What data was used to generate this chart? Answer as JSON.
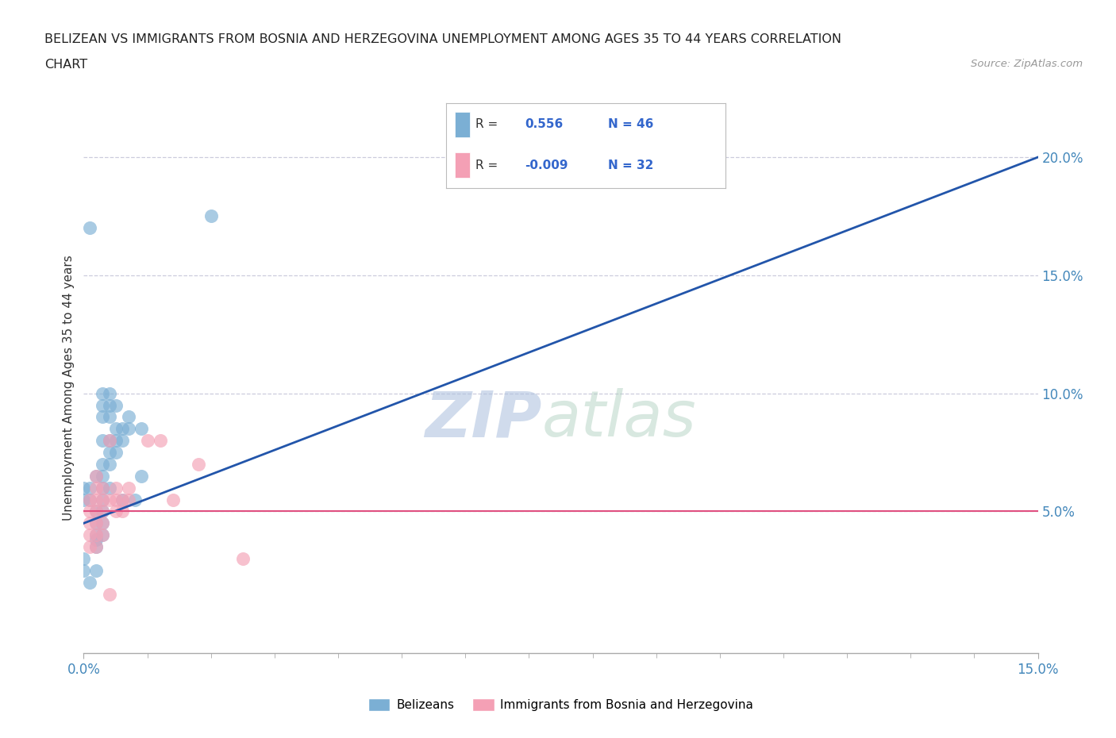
{
  "title_line1": "BELIZEAN VS IMMIGRANTS FROM BOSNIA AND HERZEGOVINA UNEMPLOYMENT AMONG AGES 35 TO 44 YEARS CORRELATION",
  "title_line2": "CHART",
  "source_text": "Source: ZipAtlas.com",
  "ylabel": "Unemployment Among Ages 35 to 44 years",
  "xlim": [
    0.0,
    0.15
  ],
  "ylim": [
    -0.01,
    0.215
  ],
  "xticks": [
    0.0,
    0.15
  ],
  "yticks": [
    0.05,
    0.1,
    0.15,
    0.2
  ],
  "xticklabels": [
    "0.0%",
    "15.0%"
  ],
  "yticklabels": [
    "5.0%",
    "10.0%",
    "15.0%",
    "20.0%"
  ],
  "watermark_zip": "ZIP",
  "watermark_atlas": "atlas",
  "legend_labels": [
    "Belizeans",
    "Immigrants from Bosnia and Herzegovina"
  ],
  "R_blue": 0.556,
  "N_blue": 46,
  "R_pink": -0.009,
  "N_pink": 32,
  "blue_color": "#7BAFD4",
  "pink_color": "#F4A0B5",
  "blue_line_color": "#2255AA",
  "pink_line_color": "#E05080",
  "blue_scatter": [
    [
      0.0,
      0.055
    ],
    [
      0.0,
      0.06
    ],
    [
      0.001,
      0.055
    ],
    [
      0.001,
      0.06
    ],
    [
      0.002,
      0.065
    ],
    [
      0.002,
      0.05
    ],
    [
      0.002,
      0.045
    ],
    [
      0.002,
      0.04
    ],
    [
      0.002,
      0.035
    ],
    [
      0.002,
      0.038
    ],
    [
      0.003,
      0.055
    ],
    [
      0.003,
      0.06
    ],
    [
      0.003,
      0.065
    ],
    [
      0.003,
      0.07
    ],
    [
      0.003,
      0.08
    ],
    [
      0.003,
      0.09
    ],
    [
      0.003,
      0.095
    ],
    [
      0.003,
      0.1
    ],
    [
      0.003,
      0.05
    ],
    [
      0.003,
      0.045
    ],
    [
      0.003,
      0.04
    ],
    [
      0.004,
      0.07
    ],
    [
      0.004,
      0.075
    ],
    [
      0.004,
      0.08
    ],
    [
      0.004,
      0.09
    ],
    [
      0.004,
      0.095
    ],
    [
      0.004,
      0.1
    ],
    [
      0.004,
      0.06
    ],
    [
      0.005,
      0.075
    ],
    [
      0.005,
      0.08
    ],
    [
      0.005,
      0.085
    ],
    [
      0.005,
      0.095
    ],
    [
      0.006,
      0.08
    ],
    [
      0.006,
      0.085
    ],
    [
      0.006,
      0.055
    ],
    [
      0.007,
      0.085
    ],
    [
      0.007,
      0.09
    ],
    [
      0.008,
      0.055
    ],
    [
      0.009,
      0.065
    ],
    [
      0.009,
      0.085
    ],
    [
      0.001,
      0.17
    ],
    [
      0.002,
      0.025
    ],
    [
      0.02,
      0.175
    ],
    [
      0.0,
      0.03
    ],
    [
      0.0,
      0.025
    ],
    [
      0.001,
      0.02
    ]
  ],
  "pink_scatter": [
    [
      0.001,
      0.055
    ],
    [
      0.001,
      0.05
    ],
    [
      0.001,
      0.045
    ],
    [
      0.001,
      0.04
    ],
    [
      0.001,
      0.035
    ],
    [
      0.002,
      0.05
    ],
    [
      0.002,
      0.055
    ],
    [
      0.002,
      0.06
    ],
    [
      0.002,
      0.065
    ],
    [
      0.002,
      0.045
    ],
    [
      0.002,
      0.04
    ],
    [
      0.002,
      0.035
    ],
    [
      0.003,
      0.06
    ],
    [
      0.003,
      0.055
    ],
    [
      0.003,
      0.05
    ],
    [
      0.003,
      0.045
    ],
    [
      0.003,
      0.04
    ],
    [
      0.004,
      0.055
    ],
    [
      0.004,
      0.08
    ],
    [
      0.005,
      0.06
    ],
    [
      0.005,
      0.055
    ],
    [
      0.005,
      0.05
    ],
    [
      0.006,
      0.055
    ],
    [
      0.006,
      0.05
    ],
    [
      0.007,
      0.055
    ],
    [
      0.007,
      0.06
    ],
    [
      0.01,
      0.08
    ],
    [
      0.012,
      0.08
    ],
    [
      0.014,
      0.055
    ],
    [
      0.018,
      0.07
    ],
    [
      0.025,
      0.03
    ],
    [
      0.004,
      0.015
    ]
  ],
  "background_color": "#FFFFFF",
  "grid_color": "#CCCCDD",
  "tick_color_blue": "#4488BB",
  "tick_color_dark": "#333333",
  "axis_color": "#AAAAAA"
}
